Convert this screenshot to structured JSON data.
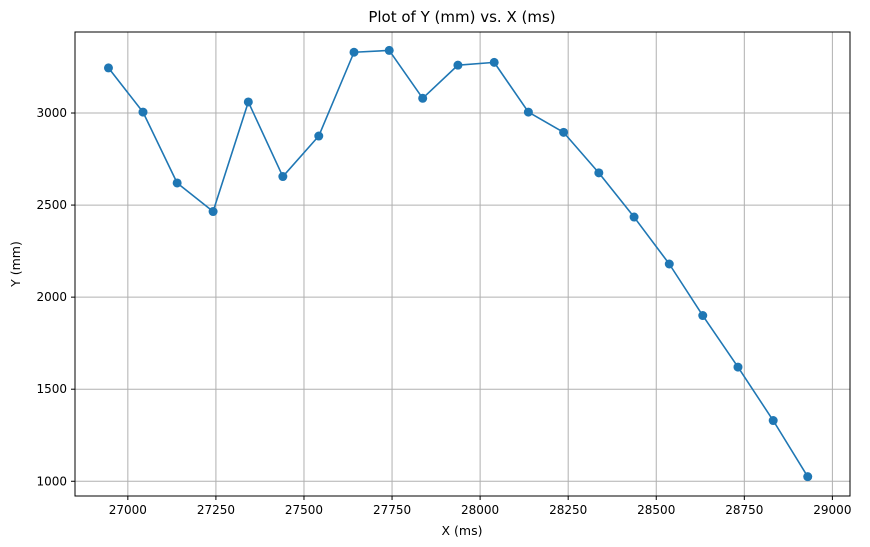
{
  "chart_data": {
    "type": "line",
    "title": "Plot of Y (mm) vs. X (ms)",
    "xlabel": "X (ms)",
    "ylabel": "Y (mm)",
    "xlim": [
      26850,
      29050
    ],
    "ylim": [
      920,
      3440
    ],
    "xticks": [
      27000,
      27250,
      27500,
      27750,
      28000,
      28250,
      28500,
      28750,
      29000
    ],
    "yticks": [
      1000,
      1500,
      2000,
      2500,
      3000
    ],
    "grid": true,
    "markers": true,
    "series": [
      {
        "color": "#1f77b4",
        "x": [
          26945,
          27043,
          27140,
          27242,
          27342,
          27440,
          27542,
          27642,
          27742,
          27837,
          27937,
          28040,
          28137,
          28237,
          28337,
          28437,
          28537,
          28632,
          28732,
          28832,
          28930
        ],
        "y": [
          3245,
          3005,
          2620,
          2465,
          3060,
          2655,
          2875,
          3330,
          3340,
          3080,
          3260,
          3275,
          3005,
          2895,
          2675,
          2435,
          2180,
          1900,
          1620,
          1330,
          1025
        ]
      }
    ]
  }
}
